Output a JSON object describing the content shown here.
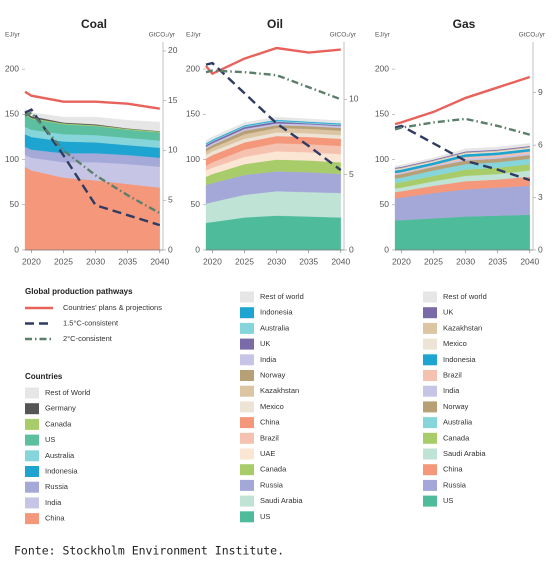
{
  "chart_data": [
    {
      "type": "stacked_area",
      "title": "Coal",
      "ylabel": "EJ/yr",
      "y2label": "GtCO₂/yr",
      "x": [
        2019,
        2020,
        2025,
        2030,
        2035,
        2040
      ],
      "xlim": [
        2019,
        2040.5
      ],
      "xticks": [
        2020,
        2025,
        2030,
        2035,
        2040
      ],
      "ylim": [
        0,
        230
      ],
      "yticks": [
        0,
        50,
        100,
        150,
        200
      ],
      "y2lim": [
        0,
        20.9
      ],
      "y2ticks": [
        0,
        5,
        10,
        15,
        20
      ],
      "series": [
        {
          "name": "China",
          "color": "#f4977a",
          "values": [
            92,
            88,
            80,
            77,
            73,
            69
          ]
        },
        {
          "name": "India",
          "color": "#c7c5e6",
          "values": [
            13,
            14,
            17,
            20,
            22,
            23
          ]
        },
        {
          "name": "Russia",
          "color": "#a4a9d8",
          "values": [
            9,
            9,
            10,
            10,
            10,
            10
          ]
        },
        {
          "name": "Indonesia",
          "color": "#1ea4d0",
          "values": [
            14,
            14,
            13,
            12,
            11,
            11
          ]
        },
        {
          "name": "Australia",
          "color": "#86d5da",
          "values": [
            8,
            8,
            8,
            8,
            8,
            8
          ]
        },
        {
          "name": "US",
          "color": "#5cbfa0",
          "values": [
            14,
            12,
            11,
            10,
            9,
            9
          ]
        },
        {
          "name": "Canada",
          "color": "#a9cc6a",
          "values": [
            1,
            1,
            1,
            1,
            1,
            1
          ]
        },
        {
          "name": "Germany",
          "color": "#555555",
          "values": [
            2,
            2,
            1,
            1,
            0.5,
            0.5
          ]
        },
        {
          "name": "Rest of World",
          "color": "#e6e6e6",
          "values": [
            3,
            4,
            6,
            8,
            9,
            10
          ]
        },
        {
          "name": "Countries' plans & projections",
          "type": "line",
          "axis": "y2",
          "color": "#e8625b",
          "dash": "solid",
          "values": [
            15.9,
            15.5,
            14.9,
            14.9,
            14.7,
            14.2
          ]
        },
        {
          "name": "1.5°C-consistent",
          "type": "line",
          "axis": "y2",
          "color": "#2f3b63",
          "dash": "dashed",
          "values": [
            13.8,
            14.1,
            9.5,
            4.5,
            3.5,
            2.5
          ]
        },
        {
          "name": "2°C-consistent",
          "type": "line",
          "axis": "y2",
          "color": "#5b7f6b",
          "dash": "dashdot",
          "values": [
            13.5,
            13.8,
            10,
            7.5,
            5.5,
            3.7
          ]
        }
      ]
    },
    {
      "type": "stacked_area",
      "title": "Oil",
      "ylabel": "EJ/yr",
      "y2label": "GtCO₂/yr",
      "x": [
        2019,
        2020,
        2025,
        2030,
        2035,
        2040
      ],
      "xlim": [
        2019,
        2040.5
      ],
      "xticks": [
        2020,
        2025,
        2030,
        2035,
        2040
      ],
      "ylim": [
        0,
        230
      ],
      "yticks": [
        0,
        50,
        100,
        150,
        200
      ],
      "y2lim": [
        0,
        13.8
      ],
      "y2ticks": [
        0,
        5,
        10
      ],
      "series": [
        {
          "name": "US",
          "color": "#4ebc9b",
          "values": [
            30,
            31,
            36,
            38,
            37,
            36
          ]
        },
        {
          "name": "Saudi Arabia",
          "color": "#bfe3d5",
          "values": [
            21,
            22,
            25,
            27,
            27,
            27
          ]
        },
        {
          "name": "Russia",
          "color": "#a3a8d8",
          "values": [
            21,
            21,
            22,
            22,
            22,
            21
          ]
        },
        {
          "name": "Canada",
          "color": "#a9cc6a",
          "values": [
            9,
            10,
            12,
            13,
            13,
            13
          ]
        },
        {
          "name": "UAE",
          "color": "#fbe6d4",
          "values": [
            7,
            7,
            8,
            9,
            9,
            9
          ]
        },
        {
          "name": "Brazil",
          "color": "#f6c2b0",
          "values": [
            5,
            6,
            8,
            9,
            9,
            9
          ]
        },
        {
          "name": "China",
          "color": "#f4977a",
          "values": [
            8,
            8,
            8,
            8,
            8,
            8
          ]
        },
        {
          "name": "Mexico",
          "color": "#ede4d6",
          "values": [
            4,
            4,
            4,
            4,
            4,
            4
          ]
        },
        {
          "name": "Kazakhstan",
          "color": "#dcc5a3",
          "values": [
            4,
            4,
            5,
            5,
            5,
            5
          ]
        },
        {
          "name": "Norway",
          "color": "#b79f76",
          "values": [
            3,
            3,
            4,
            3,
            3,
            3
          ]
        },
        {
          "name": "India",
          "color": "#c7c5e6",
          "values": [
            2,
            2,
            2,
            2,
            2,
            2
          ]
        },
        {
          "name": "UK",
          "color": "#7b6aa8",
          "values": [
            2,
            2,
            2,
            2,
            1,
            1
          ]
        },
        {
          "name": "Australia",
          "color": "#86d5da",
          "values": [
            1,
            1,
            1,
            1,
            1,
            1
          ]
        },
        {
          "name": "Indonesia",
          "color": "#1ea4d0",
          "values": [
            1,
            1,
            1,
            1,
            1,
            1
          ]
        },
        {
          "name": "Rest of world",
          "color": "#e6e6e6",
          "values": [
            3,
            3,
            3,
            3,
            3,
            3
          ]
        },
        {
          "name": "Countries' plans & projections",
          "type": "line",
          "axis": "y2",
          "color": "#e8625b",
          "dash": "solid",
          "values": [
            12.2,
            11.7,
            12.7,
            13.4,
            13.1,
            13.3
          ]
        },
        {
          "name": "1.5°C-consistent",
          "type": "line",
          "axis": "y2",
          "color": "#2f3b63",
          "dash": "dashed",
          "values": [
            12.3,
            12.4,
            10.4,
            8.4,
            6.9,
            5.3
          ]
        },
        {
          "name": "2°C-consistent",
          "type": "line",
          "axis": "y2",
          "color": "#5b7f6b",
          "dash": "dashdot",
          "values": [
            11.8,
            11.9,
            11.8,
            11.6,
            10.8,
            10
          ]
        }
      ]
    },
    {
      "type": "stacked_area",
      "title": "Gas",
      "ylabel": "EJ/yr",
      "y2label": "GtCO₂/yr",
      "x": [
        2019,
        2020,
        2025,
        2030,
        2035,
        2040
      ],
      "xlim": [
        2019,
        2040.5
      ],
      "xticks": [
        2020,
        2025,
        2030,
        2035,
        2040
      ],
      "ylim": [
        0,
        230
      ],
      "yticks": [
        0,
        50,
        100,
        150,
        200
      ],
      "y2lim": [
        0,
        11.9
      ],
      "y2ticks": [
        0,
        3,
        6,
        9
      ],
      "series": [
        {
          "name": "US",
          "color": "#4ebc9b",
          "values": [
            33,
            33,
            35,
            37,
            38,
            39
          ]
        },
        {
          "name": "Russia",
          "color": "#a3a8d8",
          "values": [
            24,
            25,
            28,
            30,
            31,
            32
          ]
        },
        {
          "name": "China",
          "color": "#f4977a",
          "values": [
            7,
            7,
            8,
            9,
            9,
            10
          ]
        },
        {
          "name": "Saudi Arabia",
          "color": "#bfe3d5",
          "values": [
            4,
            4,
            5,
            6,
            6,
            7
          ]
        },
        {
          "name": "Canada",
          "color": "#a9cc6a",
          "values": [
            6,
            6,
            6,
            7,
            7,
            7
          ]
        },
        {
          "name": "Australia",
          "color": "#86d5da",
          "values": [
            5,
            5,
            6,
            6,
            6,
            6
          ]
        },
        {
          "name": "Norway",
          "color": "#b79f76",
          "values": [
            4,
            4,
            4,
            4,
            4,
            4
          ]
        },
        {
          "name": "India",
          "color": "#c7c5e6",
          "values": [
            1,
            1,
            1,
            2,
            2,
            2
          ]
        },
        {
          "name": "Brazil",
          "color": "#f6c2b0",
          "values": [
            1,
            1,
            1,
            2,
            2,
            2
          ]
        },
        {
          "name": "Indonesia",
          "color": "#1ea4d0",
          "values": [
            3,
            3,
            3,
            3,
            3,
            3
          ]
        },
        {
          "name": "Mexico",
          "color": "#ede4d6",
          "values": [
            1,
            1,
            1,
            1,
            1,
            1
          ]
        },
        {
          "name": "Kazakhstan",
          "color": "#dcc5a3",
          "values": [
            1,
            1,
            1,
            1,
            1,
            1
          ]
        },
        {
          "name": "UK",
          "color": "#7b6aa8",
          "values": [
            1,
            1,
            1,
            1,
            1,
            1
          ]
        },
        {
          "name": "Rest of world",
          "color": "#e6e6e6",
          "values": [
            2,
            2,
            2,
            3,
            3,
            3
          ]
        },
        {
          "name": "Countries' plans & projections",
          "type": "line",
          "axis": "y2",
          "color": "#e8625b",
          "dash": "solid",
          "values": [
            7.2,
            7.3,
            7.9,
            8.7,
            9.3,
            9.9
          ]
        },
        {
          "name": "1.5°C-consistent",
          "type": "line",
          "axis": "y2",
          "color": "#2f3b63",
          "dash": "dashed",
          "values": [
            7,
            7.1,
            6.1,
            5.1,
            4.6,
            4
          ]
        },
        {
          "name": "2°C-consistent",
          "type": "line",
          "axis": "y2",
          "color": "#5b7f6b",
          "dash": "dashdot",
          "values": [
            6.9,
            7,
            7.3,
            7.5,
            7.1,
            6.6
          ]
        }
      ]
    }
  ],
  "pathways_legend_title": "Global production pathways",
  "countries_legend_title": "Countries",
  "source": "Fonte: Stockholm Environment Institute."
}
